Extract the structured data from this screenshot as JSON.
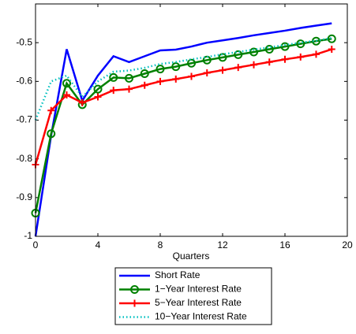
{
  "chart_data": {
    "type": "line",
    "xlabel": "Quarters",
    "x": [
      0,
      1,
      2,
      3,
      4,
      5,
      6,
      7,
      8,
      9,
      10,
      11,
      12,
      13,
      14,
      15,
      16,
      17,
      18,
      19
    ],
    "xlim": [
      0,
      20
    ],
    "xticks": [
      0,
      4,
      8,
      12,
      16,
      20
    ],
    "ylim": [
      -1,
      -0.4
    ],
    "yticks": [
      -1,
      -0.9,
      -0.8,
      -0.7,
      -0.6,
      -0.5
    ],
    "legend": "bottom-outside",
    "series": [
      {
        "name": "Short Rate",
        "color": "#0000ff",
        "marker": "none",
        "dash": "solid",
        "values": [
          -1,
          -0.74,
          -0.517,
          -0.65,
          -0.585,
          -0.535,
          -0.55,
          -0.535,
          -0.52,
          -0.518,
          -0.51,
          -0.5,
          -0.494,
          -0.488,
          -0.481,
          -0.475,
          -0.469,
          -0.462,
          -0.456,
          -0.45
        ]
      },
      {
        "name": "1−Year Interest Rate",
        "color": "#008000",
        "marker": "circle",
        "dash": "solid",
        "values": [
          -0.94,
          -0.735,
          -0.605,
          -0.66,
          -0.62,
          -0.59,
          -0.592,
          -0.58,
          -0.568,
          -0.562,
          -0.553,
          -0.545,
          -0.538,
          -0.531,
          -0.524,
          -0.517,
          -0.51,
          -0.503,
          -0.496,
          -0.49
        ]
      },
      {
        "name": "5−Year Interest Rate",
        "color": "#ff0000",
        "marker": "plus",
        "dash": "solid",
        "values": [
          -0.815,
          -0.675,
          -0.635,
          -0.655,
          -0.64,
          -0.623,
          -0.62,
          -0.61,
          -0.6,
          -0.594,
          -0.587,
          -0.578,
          -0.571,
          -0.564,
          -0.557,
          -0.55,
          -0.543,
          -0.537,
          -0.53,
          -0.517
        ]
      },
      {
        "name": "10−Year Interest Rate",
        "color": "#00bfbf",
        "marker": "none",
        "dash": "dotted",
        "values": [
          -0.7,
          -0.6,
          -0.585,
          -0.64,
          -0.6,
          -0.575,
          -0.572,
          -0.565,
          -0.555,
          -0.55,
          -0.543,
          -0.537,
          -0.53,
          -0.524,
          -0.518,
          -0.512,
          -0.506,
          -0.5,
          -0.495,
          -0.488
        ]
      }
    ]
  }
}
